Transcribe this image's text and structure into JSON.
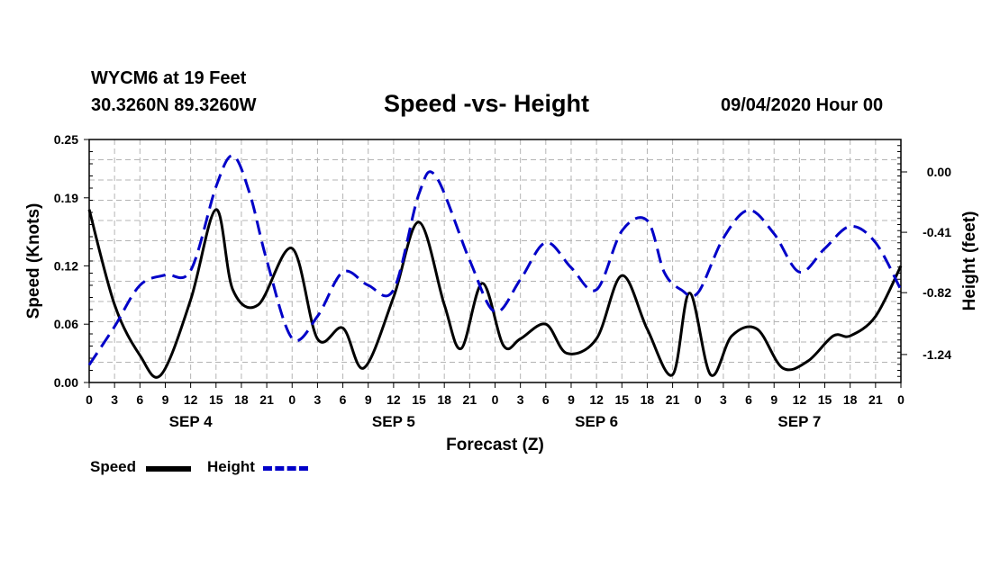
{
  "header": {
    "station": "WYCM6 at 19 Feet",
    "coords": "30.3260N 89.3260W",
    "title": "Speed -vs- Height",
    "datetime": "09/04/2020 Hour 00"
  },
  "chart_data": {
    "type": "line",
    "title": "Speed -vs- Height",
    "xlabel": "Forecast (Z)",
    "ylabel": "Speed (Knots)",
    "y2label": "Height (feet)",
    "ylim": [
      0,
      0.25
    ],
    "y2lim": [
      -1.43,
      0.22
    ],
    "xlim": [
      0,
      96
    ],
    "yticks": [
      0.0,
      0.06,
      0.12,
      0.19,
      0.25
    ],
    "ytick_labels": [
      "0.00",
      "0.06",
      "0.12",
      "0.19",
      "0.25"
    ],
    "y2ticks": [
      0.0,
      -0.41,
      -0.82,
      -1.24
    ],
    "y2tick_labels": [
      "0.00",
      "-0.41",
      "-0.82",
      "-1.24"
    ],
    "x_tick_labels": [
      "0",
      "3",
      "6",
      "9",
      "12",
      "15",
      "18",
      "21",
      "0",
      "3",
      "6",
      "9",
      "12",
      "15",
      "18",
      "21",
      "0",
      "3",
      "6",
      "9",
      "12",
      "15",
      "18",
      "21",
      "0",
      "3",
      "6",
      "9",
      "12",
      "15",
      "18",
      "21",
      "0"
    ],
    "day_labels": [
      {
        "label": "SEP 4",
        "hour": 12
      },
      {
        "label": "SEP 5",
        "hour": 36
      },
      {
        "label": "SEP 6",
        "hour": 60
      },
      {
        "label": "SEP 7",
        "hour": 84
      }
    ],
    "grid": true,
    "legend_position": "bottom-left",
    "series": [
      {
        "name": "Speed",
        "axis": "left",
        "color": "#000000",
        "style": "solid",
        "x": [
          0,
          3,
          6,
          8.5,
          12,
          15,
          17,
          20,
          24,
          27,
          30,
          32.5,
          36,
          39,
          42,
          44,
          46.5,
          49,
          51,
          54,
          56.5,
          60,
          63,
          66,
          69,
          71,
          73.5,
          76,
          79,
          82,
          85,
          88,
          90,
          93,
          96
        ],
        "y": [
          0.178,
          0.08,
          0.028,
          0.008,
          0.085,
          0.178,
          0.095,
          0.08,
          0.138,
          0.045,
          0.056,
          0.015,
          0.088,
          0.165,
          0.08,
          0.035,
          0.102,
          0.038,
          0.045,
          0.06,
          0.03,
          0.045,
          0.11,
          0.055,
          0.008,
          0.092,
          0.008,
          0.048,
          0.055,
          0.015,
          0.022,
          0.048,
          0.048,
          0.068,
          0.12
        ]
      },
      {
        "name": "Height",
        "axis": "right",
        "color": "#0000c8",
        "style": "dashed",
        "x": [
          0,
          3,
          6,
          9,
          12,
          15,
          17,
          19,
          21,
          24,
          27,
          30,
          33,
          36,
          39,
          41,
          45,
          48,
          51,
          54,
          57,
          60,
          63,
          66,
          68,
          70,
          72,
          75,
          78,
          81,
          84,
          87,
          90,
          93,
          96
        ],
        "y": [
          -1.31,
          -1.05,
          -0.77,
          -0.7,
          -0.67,
          -0.1,
          0.11,
          -0.15,
          -0.6,
          -1.13,
          -0.98,
          -0.68,
          -0.77,
          -0.8,
          -0.15,
          -0.03,
          -0.6,
          -0.95,
          -0.73,
          -0.48,
          -0.65,
          -0.8,
          -0.4,
          -0.33,
          -0.68,
          -0.8,
          -0.82,
          -0.45,
          -0.26,
          -0.42,
          -0.68,
          -0.52,
          -0.37,
          -0.48,
          -0.8
        ]
      }
    ]
  },
  "legend": {
    "speed_label": "Speed",
    "height_label": "Height"
  }
}
